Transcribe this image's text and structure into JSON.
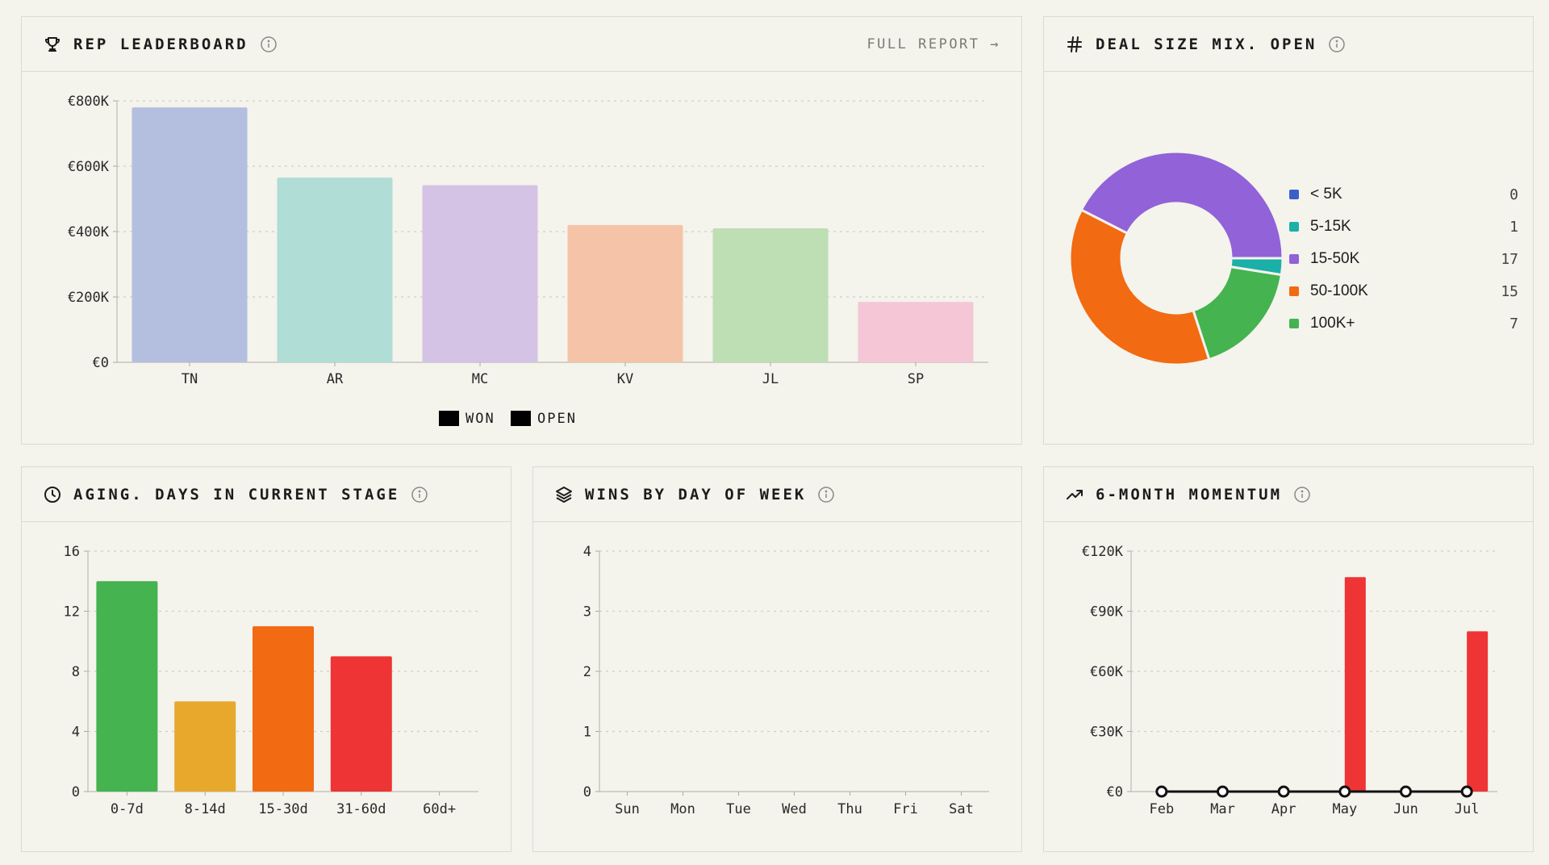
{
  "cards": {
    "leaderboard": {
      "title": "REP LEADERBOARD",
      "link": "FULL REPORT →",
      "icon": "trophy-icon"
    },
    "dealsize": {
      "title": "DEAL SIZE MIX. OPEN",
      "icon": "hash-icon"
    },
    "aging": {
      "title": "AGING. DAYS IN CURRENT STAGE",
      "icon": "clock-icon"
    },
    "wins": {
      "title": "WINS BY DAY OF WEEK",
      "icon": "layers-icon"
    },
    "momentum": {
      "title": "6-MONTH MOMENTUM",
      "icon": "trending-up-icon"
    }
  },
  "chart_data": [
    {
      "id": "leaderboard",
      "type": "bar",
      "title": "REP LEADERBOARD",
      "categories": [
        "TN",
        "AR",
        "MC",
        "KV",
        "JL",
        "SP"
      ],
      "values": [
        780000,
        565000,
        542000,
        420000,
        410000,
        185000
      ],
      "colors": [
        "#b4bfe0",
        "#b0ddd5",
        "#d4c3e5",
        "#f5c4a8",
        "#bedeb4",
        "#f4c6d6"
      ],
      "yticks": [
        "€0",
        "€200K",
        "€400K",
        "€600K",
        "€800K"
      ],
      "ylim": [
        0,
        800000
      ],
      "legend": [
        "WON",
        "OPEN"
      ],
      "legend_position": "bottom",
      "grid": true
    },
    {
      "id": "dealsize",
      "type": "pie",
      "title": "DEAL SIZE MIX. OPEN",
      "categories": [
        "< 5K",
        "5-15K",
        "15-50K",
        "50-100K",
        "100K+"
      ],
      "values": [
        0,
        1,
        17,
        15,
        7
      ],
      "colors": [
        "#3b5fc8",
        "#1ab0a8",
        "#9262d8",
        "#f26a12",
        "#44b350"
      ],
      "legend_position": "right"
    },
    {
      "id": "aging",
      "type": "bar",
      "title": "AGING. DAYS IN CURRENT STAGE",
      "categories": [
        "0-7d",
        "8-14d",
        "15-30d",
        "31-60d",
        "60d+"
      ],
      "values": [
        14,
        6,
        11,
        9,
        0
      ],
      "colors": [
        "#44b350",
        "#e8a82c",
        "#f26a12",
        "#ee3434",
        "#999999"
      ],
      "yticks": [
        "0",
        "4",
        "8",
        "12",
        "16"
      ],
      "ylim": [
        0,
        16
      ],
      "grid": true
    },
    {
      "id": "wins",
      "type": "bar",
      "title": "WINS BY DAY OF WEEK",
      "categories": [
        "Sun",
        "Mon",
        "Tue",
        "Wed",
        "Thu",
        "Fri",
        "Sat"
      ],
      "values": [
        0,
        0,
        0,
        0,
        0,
        0,
        0
      ],
      "yticks": [
        "0",
        "1",
        "2",
        "3",
        "4"
      ],
      "ylim": [
        0,
        4
      ],
      "grid": true
    },
    {
      "id": "momentum",
      "type": "bar",
      "title": "6-MONTH MOMENTUM",
      "categories": [
        "Feb",
        "Mar",
        "Apr",
        "May",
        "Jun",
        "Jul"
      ],
      "series": [
        {
          "type": "bar",
          "values": [
            0,
            0,
            0,
            107000,
            0,
            80000
          ],
          "color": "#ee3434"
        },
        {
          "type": "line",
          "values": [
            0,
            0,
            0,
            0,
            0,
            0
          ],
          "color": "#111111"
        }
      ],
      "yticks": [
        "€0",
        "€30K",
        "€60K",
        "€90K",
        "€120K"
      ],
      "ylim": [
        0,
        120000
      ],
      "grid": true
    }
  ]
}
